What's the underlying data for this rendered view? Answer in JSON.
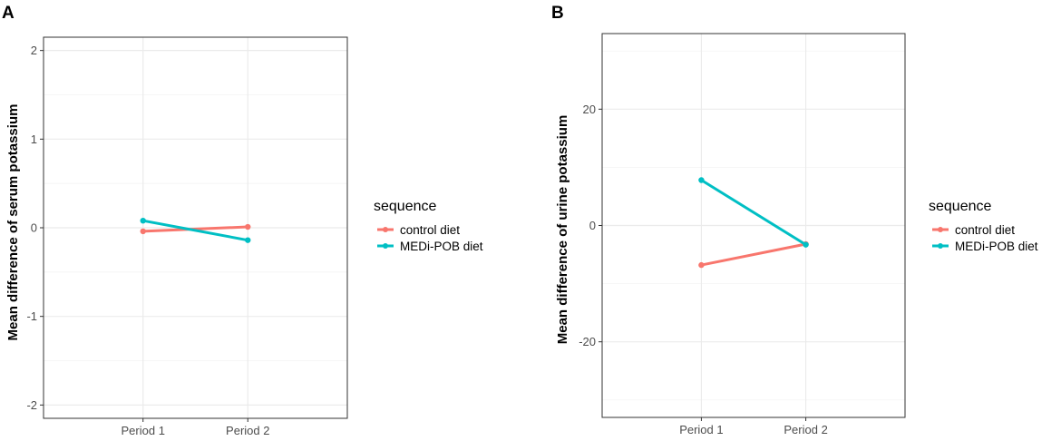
{
  "colors": {
    "control": "#F8766D",
    "medi": "#00BFC4"
  },
  "legend": {
    "title": "sequence",
    "entries": [
      "control diet",
      "MEDi-POB diet"
    ]
  },
  "chart_data": [
    {
      "panel": "A",
      "type": "line",
      "categories": [
        "Period 1",
        "Period 2"
      ],
      "ylabel": "Mean difference of serum potassium",
      "xlabel": "",
      "ylim": [
        -2.15,
        2.15
      ],
      "yticks": [
        -2,
        -1,
        0,
        1,
        2
      ],
      "ytick_labels": [
        "-2",
        "-1",
        "0",
        "1",
        "2"
      ],
      "series": [
        {
          "name": "control diet",
          "values": [
            -0.04,
            0.01
          ]
        },
        {
          "name": "MEDi-POB diet",
          "values": [
            0.08,
            -0.14
          ]
        }
      ]
    },
    {
      "panel": "B",
      "type": "line",
      "categories": [
        "Period 1",
        "Period 2"
      ],
      "ylabel": "Mean difference of urine potassium",
      "xlabel": "",
      "ylim": [
        -33,
        33
      ],
      "yticks": [
        -20,
        0,
        20
      ],
      "ytick_labels": [
        "-20",
        "0",
        "20"
      ],
      "series": [
        {
          "name": "control diet",
          "values": [
            -6.8,
            -3.2
          ]
        },
        {
          "name": "MEDi-POB diet",
          "values": [
            7.8,
            -3.3
          ]
        }
      ]
    }
  ]
}
